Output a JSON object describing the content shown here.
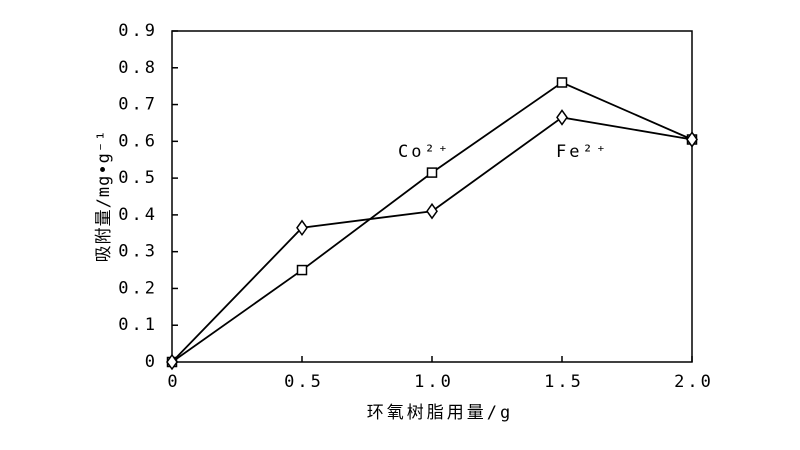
{
  "chart_data": {
    "type": "line",
    "x_label": "环氧树脂用量/g",
    "y_label": "吸附量/mg•g⁻¹",
    "x": [
      0,
      0.5,
      1.0,
      1.5,
      2.0
    ],
    "series": [
      {
        "name": "Co²⁺",
        "color": "#000000",
        "marker": "square",
        "values": [
          0,
          0.25,
          0.515,
          0.76,
          0.605
        ]
      },
      {
        "name": "Fe²⁺",
        "color": "#000000",
        "marker": "diamond",
        "values": [
          0,
          0.365,
          0.41,
          0.665,
          0.605
        ]
      }
    ],
    "xlim": [
      0,
      2.0
    ],
    "ylim": [
      0,
      0.9
    ],
    "xticks": [
      0,
      0.5,
      {
        "value": 1.0,
        "label": "1.0"
      },
      1.5,
      {
        "value": 2.0,
        "label": "2.0"
      }
    ],
    "yticks": [
      0,
      0.1,
      0.2,
      0.3,
      0.4,
      0.5,
      0.6,
      0.7,
      0.8,
      0.9
    ],
    "grid": false
  }
}
